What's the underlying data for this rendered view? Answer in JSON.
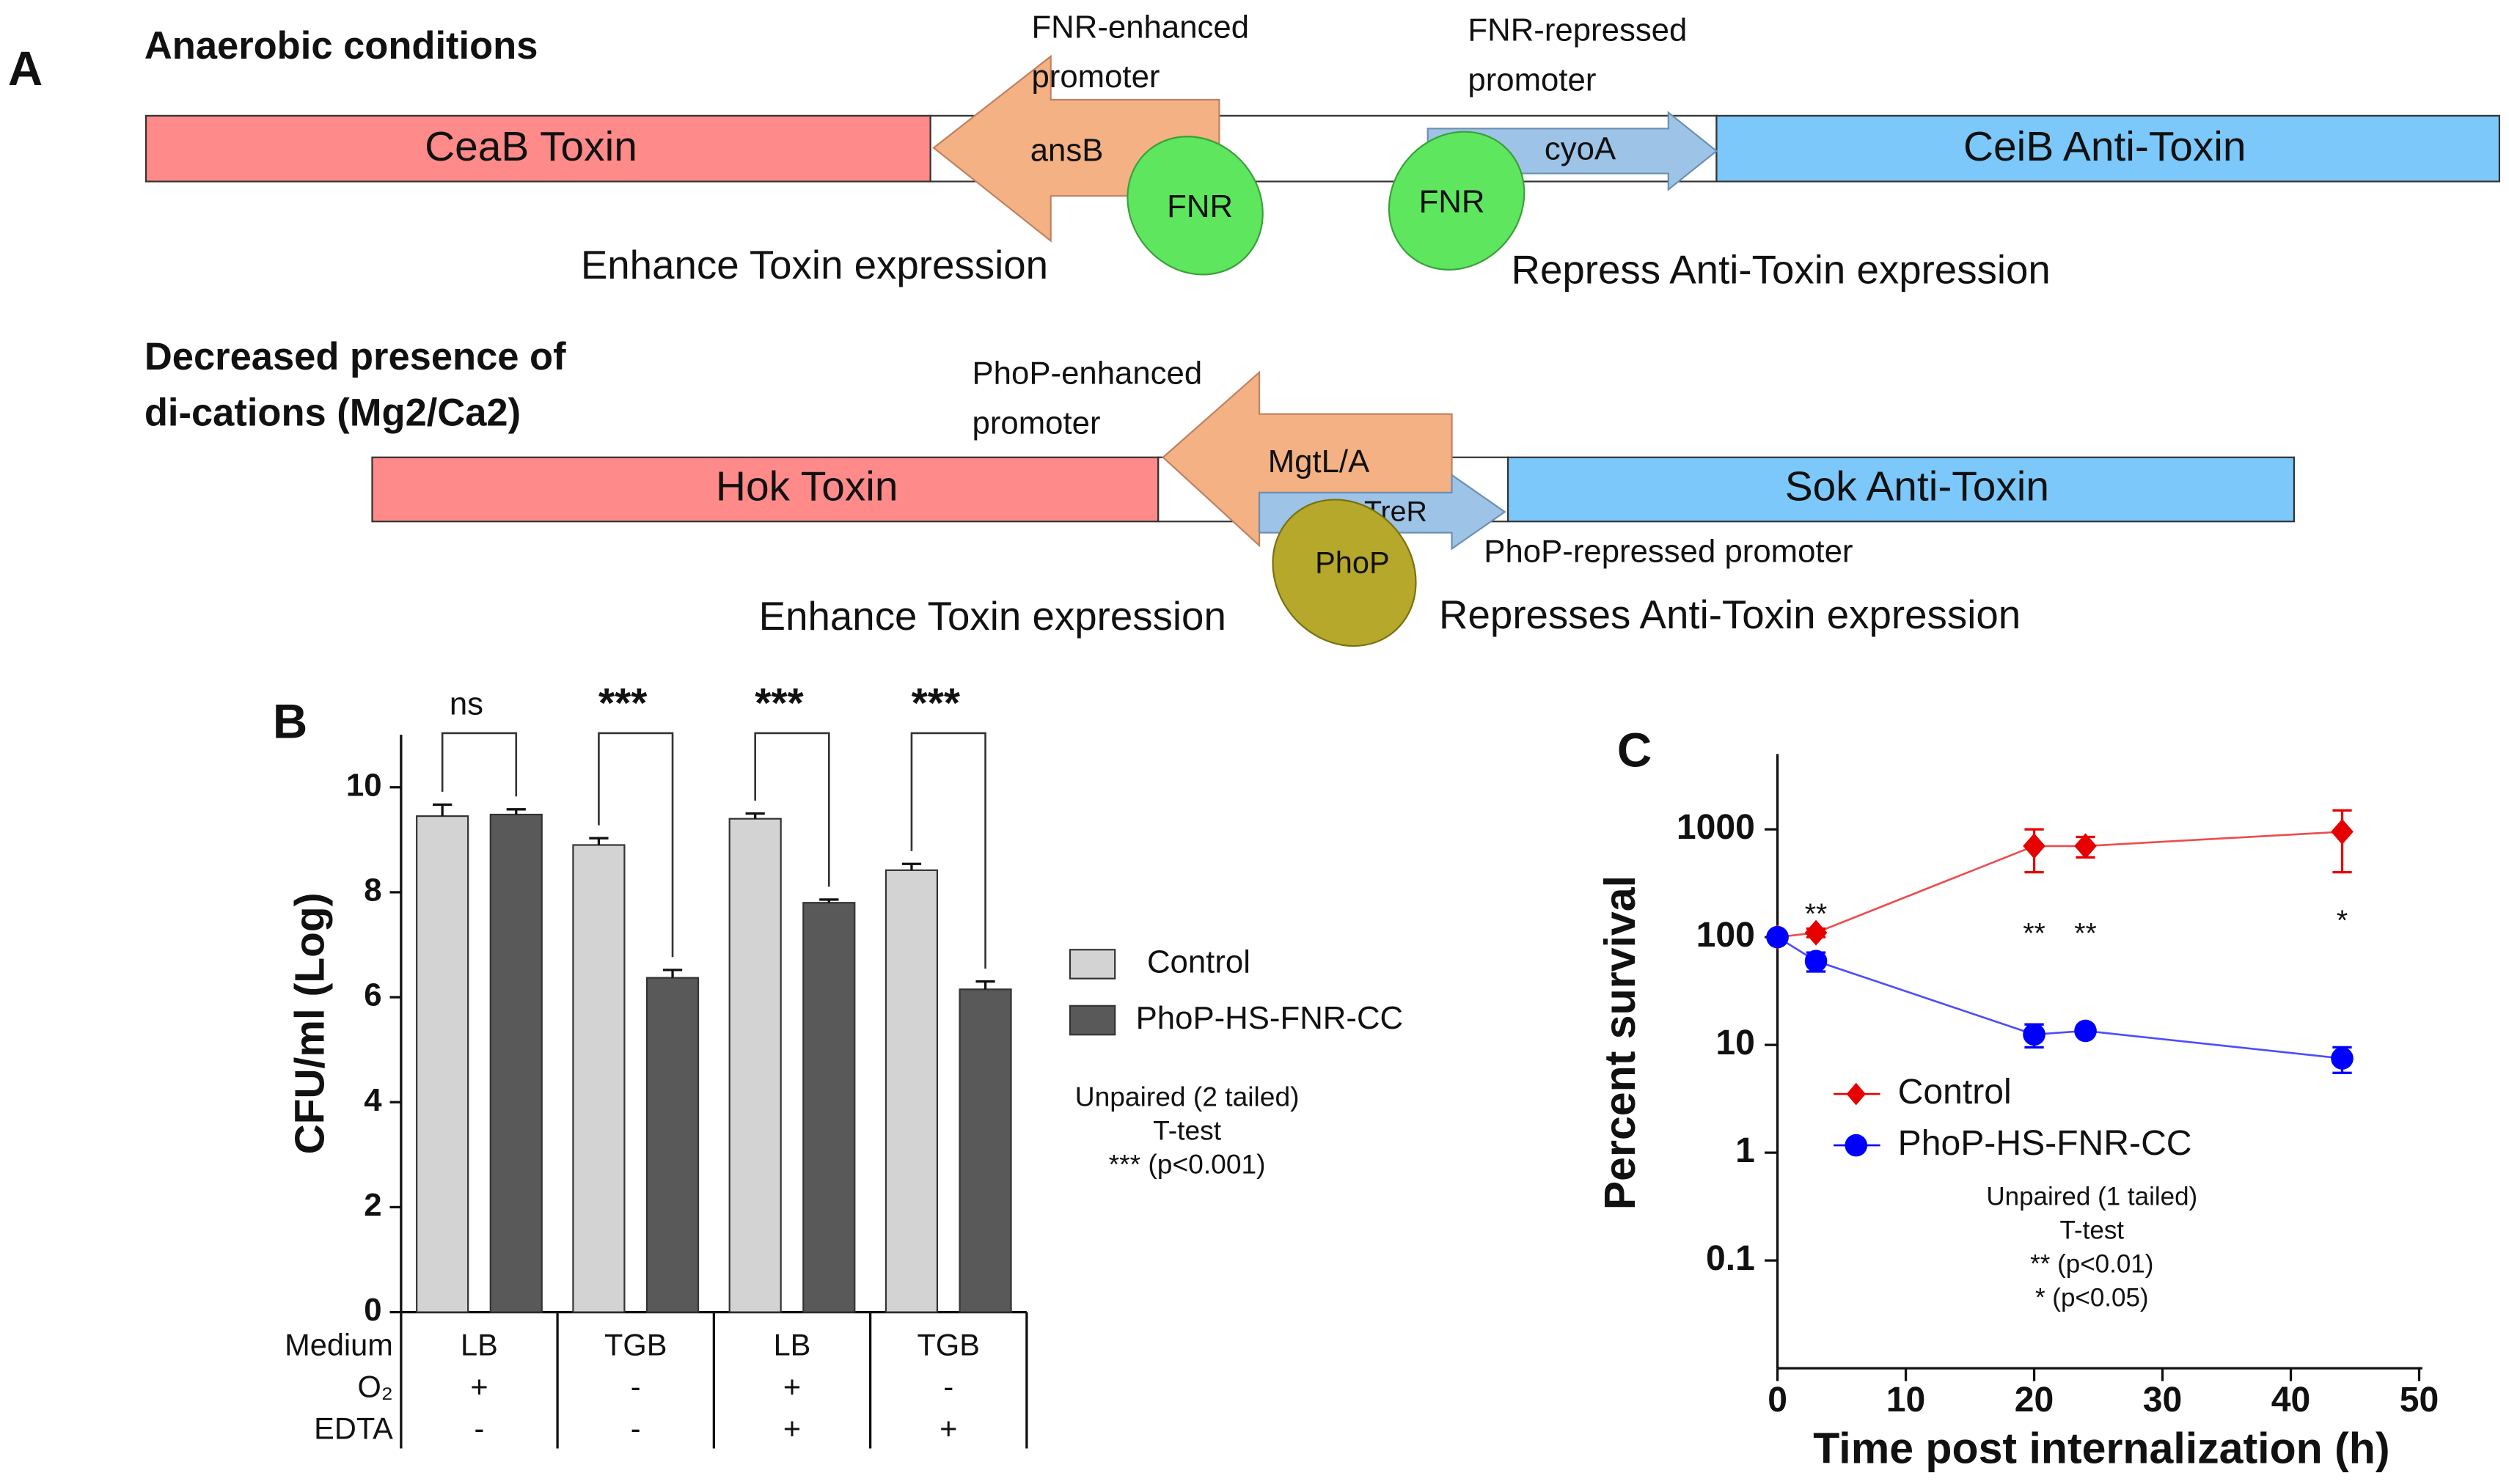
{
  "diagram": {
    "panel_label": "A",
    "rows": [
      {
        "title": [
          "Anaerobic conditions"
        ],
        "toxin": "CeaB Toxin",
        "antitoxin": "CeiB Anti-Toxin",
        "enhancer_gene": "ansB",
        "repressor_gene": "cyoA",
        "regulator": "FNR",
        "enhanced_promoter": [
          "FNR-enhanced",
          "promoter"
        ],
        "repressed_promoter": [
          "FNR-repressed",
          "promoter"
        ],
        "enhance_text": "Enhance Toxin expression",
        "repress_text": "Repress Anti-Toxin expression"
      },
      {
        "title": [
          "Decreased presence of",
          "di-cations (Mg2/Ca2)"
        ],
        "toxin": "Hok Toxin",
        "antitoxin": "Sok Anti-Toxin",
        "enhancer_gene": "MgtL/A",
        "repressor_gene": "TreR",
        "regulator": "PhoP",
        "enhanced_promoter": [
          "PhoP-enhanced",
          "promoter"
        ],
        "repressed_promoter": [
          "PhoP-repressed promoter"
        ],
        "enhance_text": "Enhance Toxin expression",
        "repress_text": "Represses Anti-Toxin expression"
      }
    ]
  },
  "chart_data": [
    {
      "type": "bar",
      "panel_label": "B",
      "y_label": "CFU/ml (Log)",
      "ylim": [
        0,
        11
      ],
      "yticks": [
        0,
        2,
        4,
        6,
        8,
        10
      ],
      "categories": [
        "LB",
        "TGB",
        "LB",
        "TGB"
      ],
      "series": [
        {
          "name": "Control",
          "color": "#d3d3d3",
          "values": [
            9.45,
            8.9,
            9.4,
            8.42
          ],
          "errors": [
            0.22,
            0.13,
            0.1,
            0.12
          ]
        },
        {
          "name": "PhoP-HS-FNR-CC",
          "color": "#595959",
          "values": [
            9.48,
            6.37,
            7.8,
            6.15
          ],
          "errors": [
            0.1,
            0.15,
            0.06,
            0.15
          ]
        }
      ],
      "significance": [
        "ns",
        "***",
        "***",
        "***"
      ],
      "conditions": [
        {
          "label": "Medium",
          "values": [
            "LB",
            "TGB",
            "LB",
            "TGB"
          ]
        },
        {
          "label": "O₂",
          "values": [
            "+",
            "-",
            "+",
            "-"
          ]
        },
        {
          "label": "EDTA",
          "values": [
            "-",
            "-",
            "+",
            "+"
          ]
        }
      ],
      "note": [
        "Unpaired (2 tailed)",
        "T-test",
        "*** (p<0.001)"
      ]
    },
    {
      "type": "line",
      "panel_label": "C",
      "x_label": "Time post internalization (h)",
      "y_label": "Percent survival",
      "log_y": true,
      "xlim": [
        0,
        50
      ],
      "xticks": [
        0,
        10,
        20,
        30,
        40,
        50
      ],
      "ylim": [
        0.01,
        5000
      ],
      "yticks": [
        0.1,
        1,
        10,
        100,
        1000
      ],
      "x": [
        0,
        3,
        20,
        24,
        44
      ],
      "series": [
        {
          "name": "Control",
          "color": "#e60000",
          "marker": "diamond",
          "values": [
            100,
            110,
            700,
            700,
            950
          ],
          "errors": [
            0,
            10,
            300,
            150,
            550
          ]
        },
        {
          "name": "PhoP-HS-FNR-CC",
          "color": "#0000ff",
          "marker": "circle",
          "values": [
            100,
            60,
            12.5,
            13.5,
            7.5
          ],
          "errors": [
            0,
            12,
            3,
            1,
            2
          ]
        }
      ],
      "significance": [
        null,
        "**",
        "**",
        "**",
        "*"
      ],
      "note": [
        "Unpaired (1 tailed)",
        "T-test",
        "** (p<0.01)",
        "* (p<0.05)"
      ]
    }
  ]
}
